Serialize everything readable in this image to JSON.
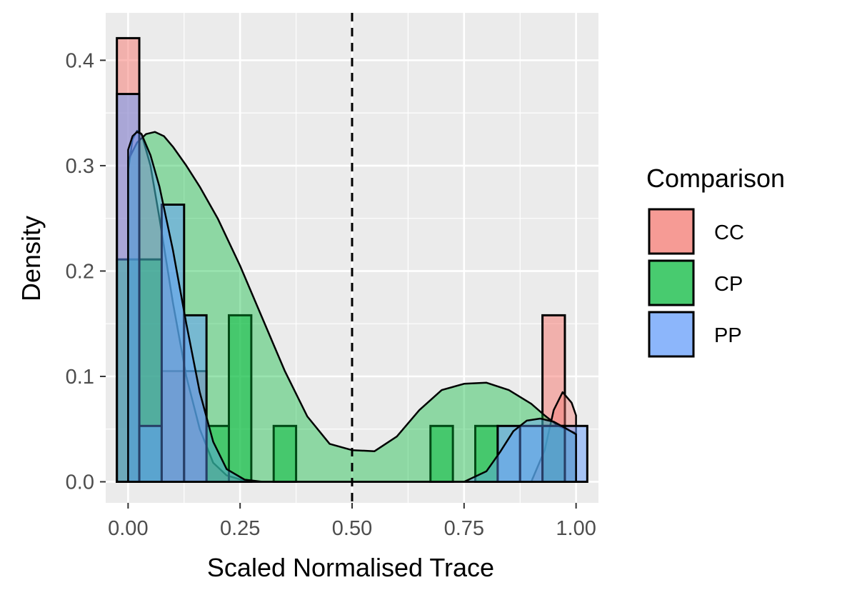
{
  "chart_data": {
    "type": "histogram",
    "xlabel": "Scaled Normalised Trace",
    "ylabel": "Density",
    "xlim": [
      -0.05,
      1.05
    ],
    "ylim": [
      -0.02,
      0.445
    ],
    "x_ticks": [
      0.0,
      0.25,
      0.5,
      0.75,
      1.0
    ],
    "x_tick_labels": [
      "0.00",
      "0.25",
      "0.50",
      "0.75",
      "1.00"
    ],
    "y_ticks": [
      0.0,
      0.1,
      0.2,
      0.3,
      0.4
    ],
    "y_tick_labels": [
      "0.0",
      "0.1",
      "0.2",
      "0.3",
      "0.4"
    ],
    "reference_line": {
      "x": 0.5,
      "style": "dashed"
    },
    "bin_centers": [
      0.0,
      0.05,
      0.1,
      0.15,
      0.2,
      0.25,
      0.3,
      0.35,
      0.4,
      0.45,
      0.5,
      0.55,
      0.6,
      0.65,
      0.7,
      0.75,
      0.8,
      0.85,
      0.9,
      0.95,
      1.0
    ],
    "bin_width": 0.05,
    "legend": {
      "title": "Comparison",
      "entries": [
        "CC",
        "CP",
        "PP"
      ],
      "position": "right"
    },
    "series": [
      {
        "name": "CC",
        "color": "#F8766D",
        "values": [
          0.421,
          0.0,
          0.105,
          0.105,
          0.0,
          0.0,
          0.0,
          0.0,
          0.0,
          0.0,
          0.0,
          0.0,
          0.0,
          0.0,
          0.0,
          0.0,
          0.0,
          0.0,
          0.0,
          0.158,
          0.0
        ],
        "density_x": [
          0.0,
          0.01,
          0.02,
          0.03,
          0.05,
          0.07,
          0.1,
          0.13,
          0.16,
          0.19,
          0.22,
          0.26,
          0.3,
          0.35,
          0.4,
          0.9,
          0.93,
          0.95,
          0.97,
          0.99,
          1.0
        ],
        "density_y": [
          0.295,
          0.325,
          0.333,
          0.33,
          0.3,
          0.25,
          0.17,
          0.1,
          0.05,
          0.018,
          0.006,
          0.001,
          0.0,
          0.0,
          0.0,
          0.0,
          0.03,
          0.068,
          0.085,
          0.075,
          0.063
        ]
      },
      {
        "name": "CP",
        "color": "#00BA38",
        "values": [
          0.211,
          0.211,
          0.0,
          0.0,
          0.053,
          0.158,
          0.0,
          0.053,
          0.0,
          0.0,
          0.0,
          0.0,
          0.0,
          0.0,
          0.053,
          0.0,
          0.053,
          0.0,
          0.0,
          0.053,
          0.0
        ],
        "density_x": [
          0.0,
          0.02,
          0.04,
          0.06,
          0.08,
          0.1,
          0.13,
          0.16,
          0.2,
          0.25,
          0.3,
          0.35,
          0.4,
          0.45,
          0.5,
          0.55,
          0.6,
          0.65,
          0.7,
          0.75,
          0.8,
          0.85,
          0.9,
          0.93,
          0.96,
          1.0
        ],
        "density_y": [
          0.305,
          0.322,
          0.33,
          0.332,
          0.328,
          0.318,
          0.3,
          0.28,
          0.25,
          0.205,
          0.155,
          0.105,
          0.062,
          0.036,
          0.03,
          0.029,
          0.043,
          0.068,
          0.087,
          0.093,
          0.094,
          0.087,
          0.074,
          0.063,
          0.053,
          0.046
        ]
      },
      {
        "name": "PP",
        "color": "#619CFF",
        "values": [
          0.368,
          0.053,
          0.263,
          0.158,
          0.0,
          0.0,
          0.0,
          0.0,
          0.0,
          0.0,
          0.0,
          0.0,
          0.0,
          0.0,
          0.0,
          0.0,
          0.0,
          0.053,
          0.053,
          0.053,
          0.053
        ],
        "density_x": [
          0.0,
          0.01,
          0.02,
          0.03,
          0.05,
          0.07,
          0.1,
          0.13,
          0.16,
          0.19,
          0.22,
          0.26,
          0.3,
          0.35,
          0.4,
          0.75,
          0.8,
          0.83,
          0.86,
          0.89,
          0.92,
          0.95,
          0.98,
          1.0
        ],
        "density_y": [
          0.315,
          0.328,
          0.332,
          0.33,
          0.31,
          0.28,
          0.22,
          0.15,
          0.085,
          0.038,
          0.012,
          0.002,
          0.0,
          0.0,
          0.0,
          0.0,
          0.01,
          0.028,
          0.048,
          0.058,
          0.06,
          0.057,
          0.05,
          0.045
        ]
      }
    ]
  }
}
